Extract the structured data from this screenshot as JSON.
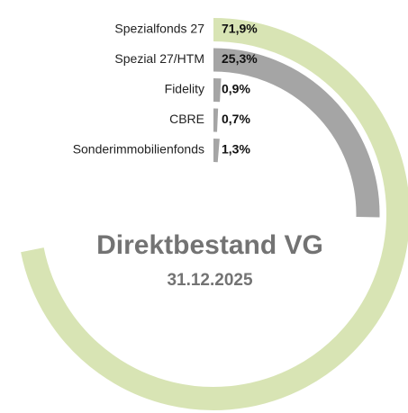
{
  "chart_data": {
    "type": "radial_bar",
    "title": "Direktbestand VG",
    "subtitle": "31.12.2025",
    "categories": [
      "Spezialfonds 27",
      "Spezial 27/HTM",
      "Fidelity",
      "CBRE",
      "Sonderimmobilienfonds"
    ],
    "values": [
      71.9,
      25.3,
      0.9,
      0.7,
      1.3
    ],
    "value_labels": [
      "71,9%",
      "25,3%",
      "0,9%",
      "0,7%",
      "1,3%"
    ],
    "colors": [
      "#d8e4b4",
      "#a5a5a5",
      "#a5a5a5",
      "#a5a5a5",
      "#a5a5a5"
    ],
    "xlim": [
      0,
      100
    ]
  }
}
